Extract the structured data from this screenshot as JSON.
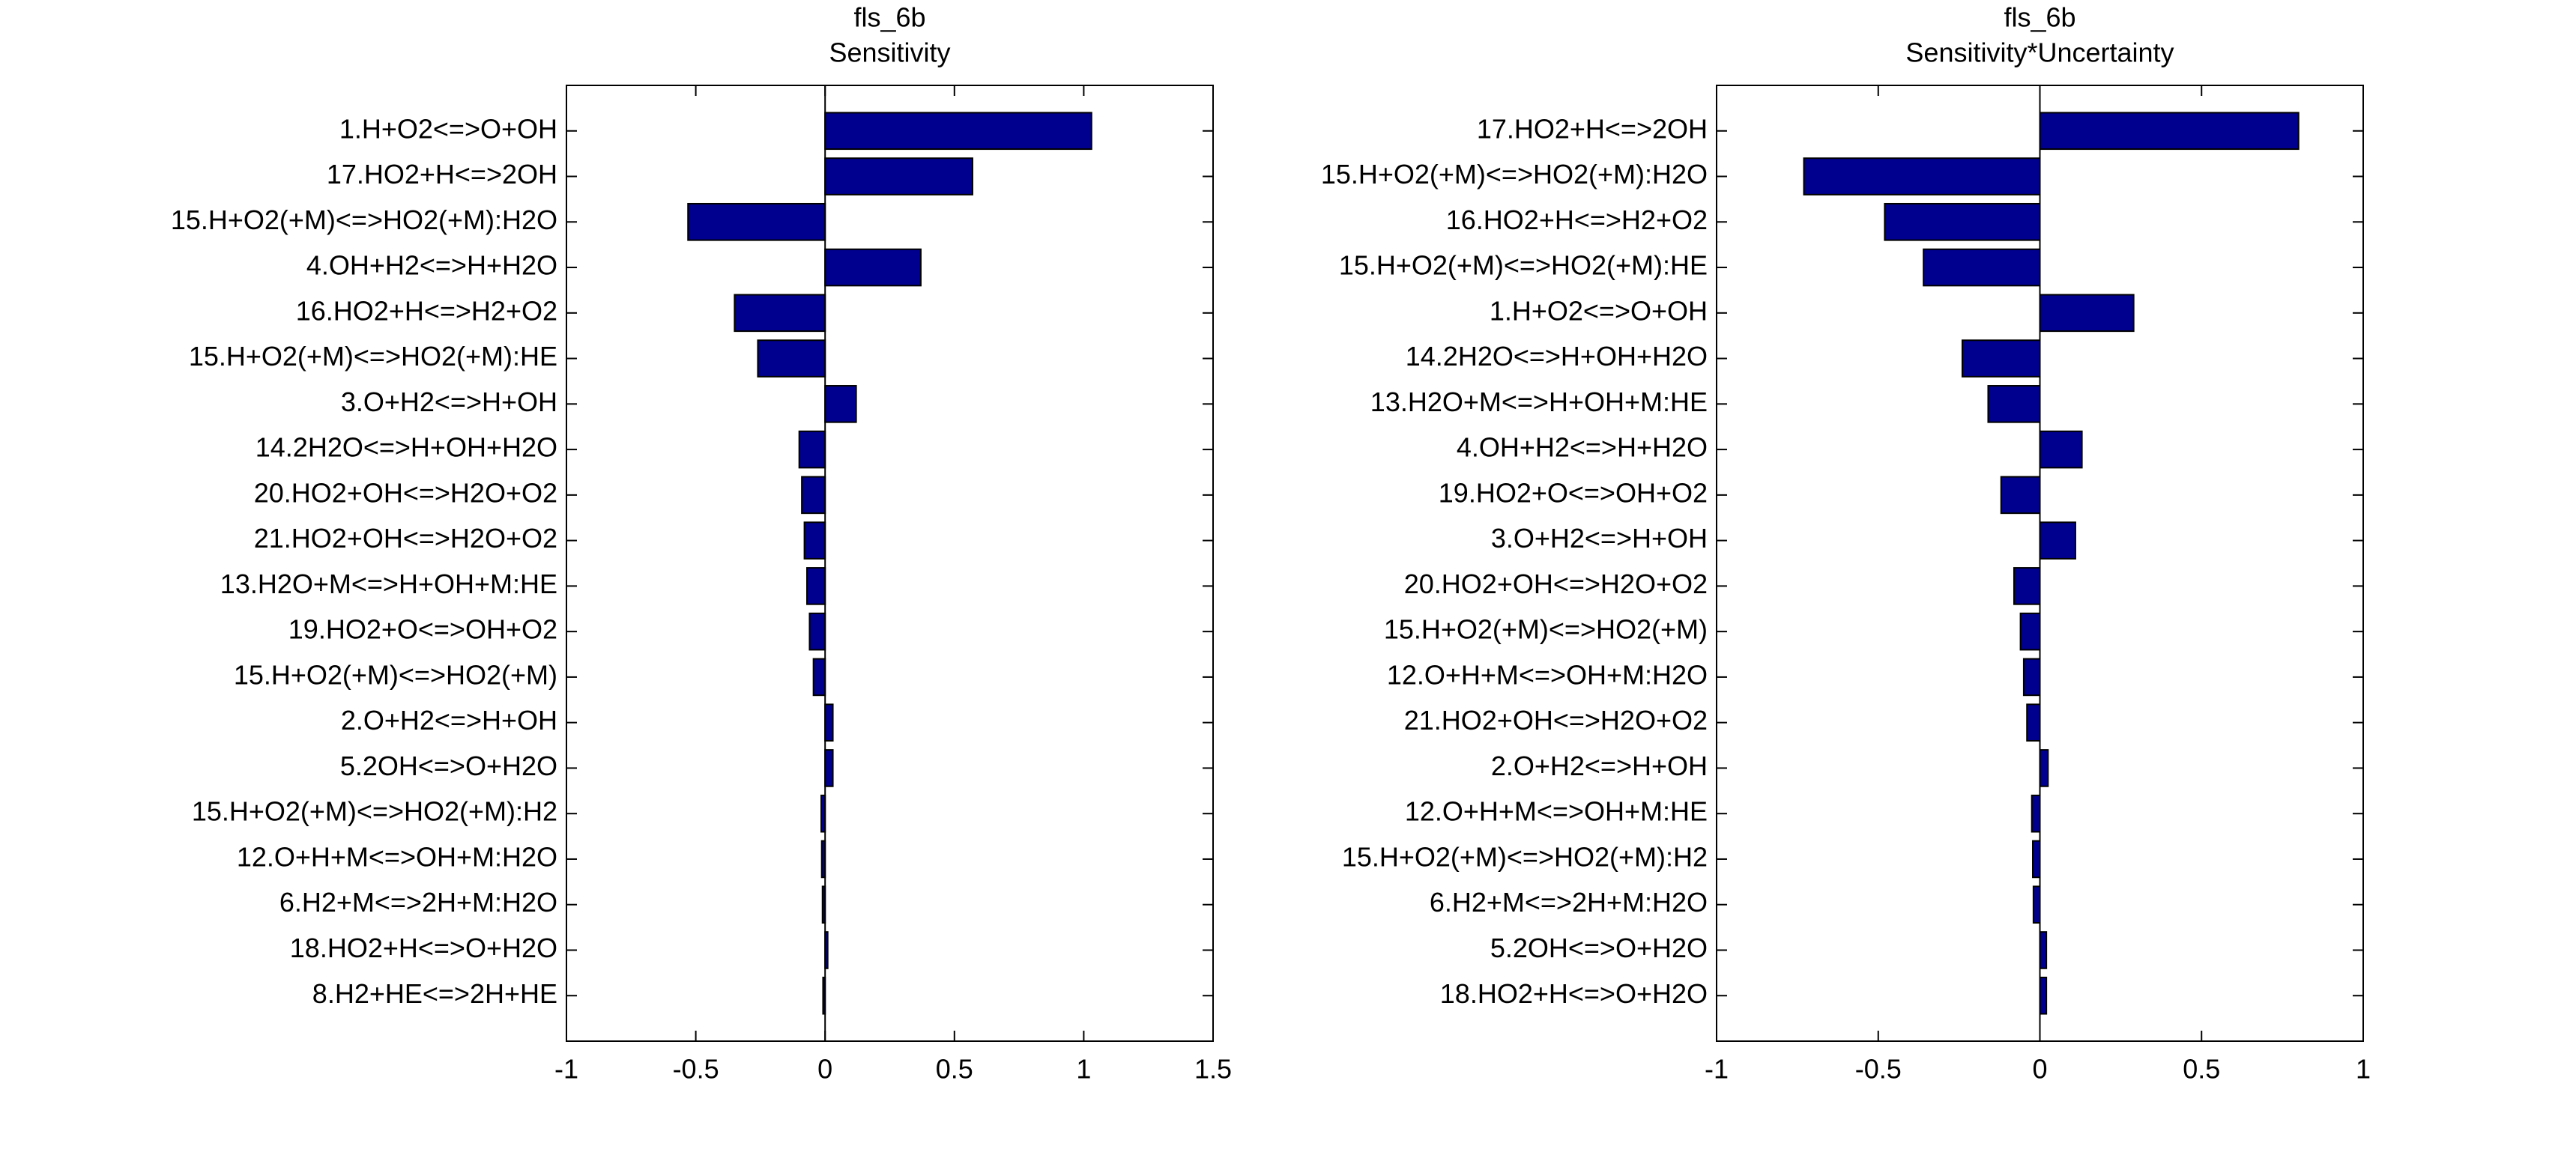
{
  "chart_data": [
    {
      "type": "bar",
      "orientation": "horizontal",
      "title": "fls_6b",
      "subtitle": "Sensitivity",
      "color": "#00008f",
      "categories": [
        "1.H+O2<=>O+OH",
        "17.HO2+H<=>2OH",
        "15.H+O2(+M)<=>HO2(+M):H2O",
        "4.OH+H2<=>H+H2O",
        "16.HO2+H<=>H2+O2",
        "15.H+O2(+M)<=>HO2(+M):HE",
        "3.O+H2<=>H+OH",
        "14.2H2O<=>H+OH+H2O",
        "20.HO2+OH<=>H2O+O2",
        "21.HO2+OH<=>H2O+O2",
        "13.H2O+M<=>H+OH+M:HE",
        "19.HO2+O<=>OH+O2",
        "15.H+O2(+M)<=>HO2(+M)",
        "2.O+H2<=>H+OH",
        "5.2OH<=>O+H2O",
        "15.H+O2(+M)<=>HO2(+M):H2",
        "12.O+H+M<=>OH+M:H2O",
        "6.H2+M<=>2H+M:H2O",
        "18.HO2+H<=>O+H2O",
        "8.H2+HE<=>2H+HE"
      ],
      "values": [
        1.03,
        0.57,
        -0.53,
        0.37,
        -0.35,
        -0.26,
        0.12,
        -0.1,
        -0.09,
        -0.08,
        -0.07,
        -0.06,
        -0.045,
        0.03,
        0.03,
        -0.015,
        -0.013,
        -0.01,
        0.01,
        -0.008
      ],
      "xlim": [
        -1,
        1.5
      ],
      "xticks": [
        -1,
        -0.5,
        0,
        0.5,
        1,
        1.5
      ]
    },
    {
      "type": "bar",
      "orientation": "horizontal",
      "title": "fls_6b",
      "subtitle": "Sensitivity*Uncertainty",
      "color": "#00008f",
      "categories": [
        "17.HO2+H<=>2OH",
        "15.H+O2(+M)<=>HO2(+M):H2O",
        "16.HO2+H<=>H2+O2",
        "15.H+O2(+M)<=>HO2(+M):HE",
        "1.H+O2<=>O+OH",
        "14.2H2O<=>H+OH+H2O",
        "13.H2O+M<=>H+OH+M:HE",
        "4.OH+H2<=>H+H2O",
        "19.HO2+O<=>OH+O2",
        "3.O+H2<=>H+OH",
        "20.HO2+OH<=>H2O+O2",
        "15.H+O2(+M)<=>HO2(+M)",
        "12.O+H+M<=>OH+M:H2O",
        "21.HO2+OH<=>H2O+O2",
        "2.O+H2<=>H+OH",
        "12.O+H+M<=>OH+M:HE",
        "15.H+O2(+M)<=>HO2(+M):H2",
        "6.H2+M<=>2H+M:H2O",
        "5.2OH<=>O+H2O",
        "18.HO2+H<=>O+H2O"
      ],
      "values": [
        0.8,
        -0.73,
        -0.48,
        -0.36,
        0.29,
        -0.24,
        -0.16,
        0.13,
        -0.12,
        0.11,
        -0.08,
        -0.06,
        -0.05,
        -0.04,
        0.025,
        -0.025,
        -0.022,
        -0.02,
        0.02,
        0.02
      ],
      "xlim": [
        -1,
        1
      ],
      "xticks": [
        -1,
        -0.5,
        0,
        0.5,
        1
      ]
    }
  ]
}
